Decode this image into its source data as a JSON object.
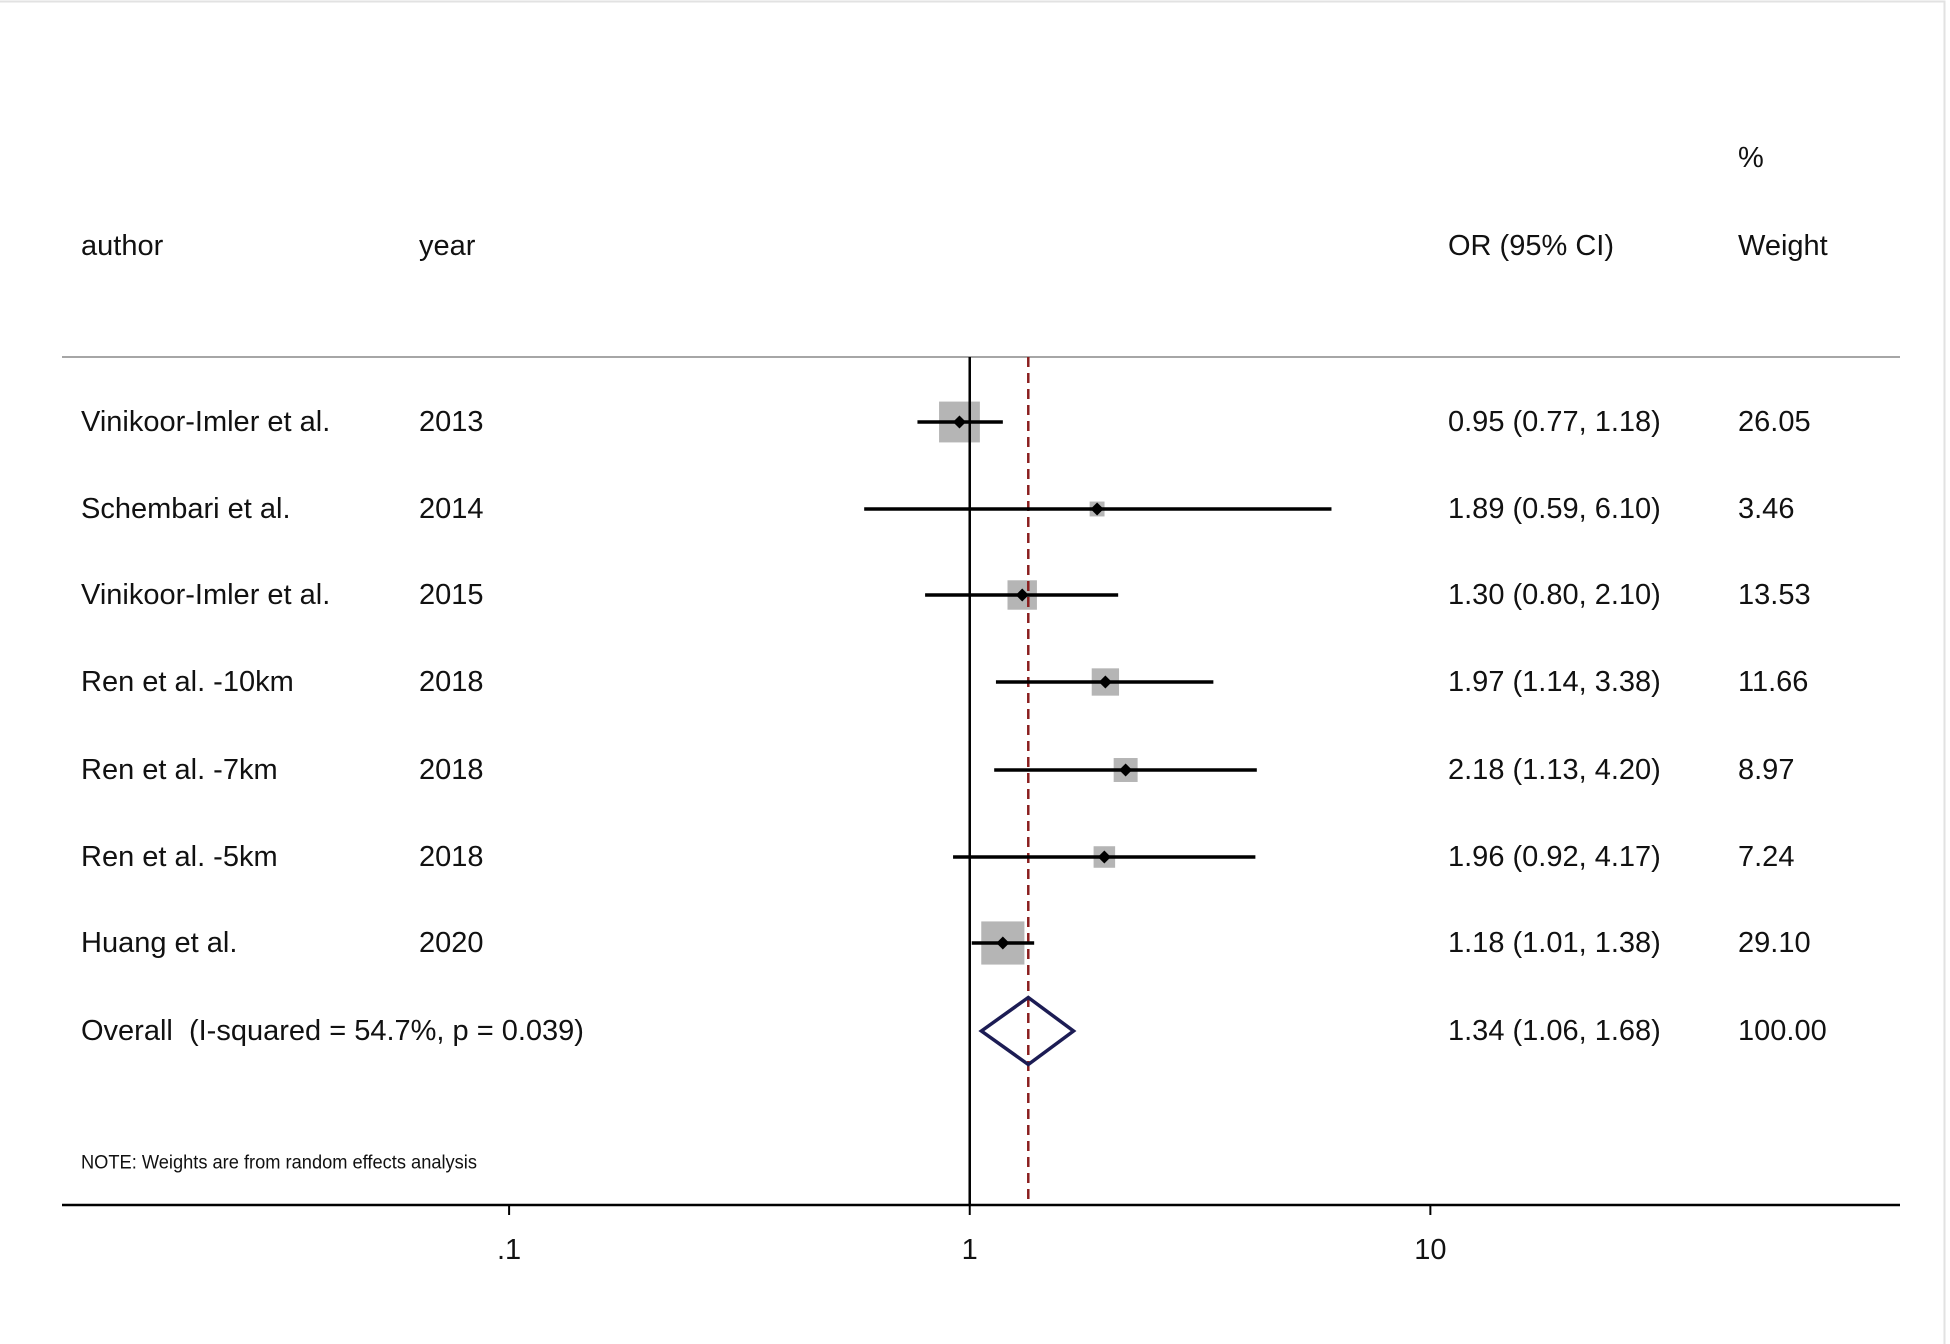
{
  "chart_data": {
    "type": "scatter",
    "header": {
      "author": "author",
      "year": "year",
      "effect": "OR (95% CI)",
      "weight_unit": "%",
      "weight": "Weight"
    },
    "studies": [
      {
        "author": "Vinikoor-Imler et al.",
        "year": "2013",
        "or": 0.95,
        "ci": [
          0.77,
          1.18
        ],
        "or_ci_label": "0.95 (0.77, 1.18)",
        "weight": 26.05,
        "weight_label": "26.05"
      },
      {
        "author": "Schembari et al.",
        "year": "2014",
        "or": 1.89,
        "ci": [
          0.59,
          6.1
        ],
        "or_ci_label": "1.89 (0.59, 6.10)",
        "weight": 3.46,
        "weight_label": "3.46"
      },
      {
        "author": "Vinikoor-Imler et al.",
        "year": "2015",
        "or": 1.3,
        "ci": [
          0.8,
          2.1
        ],
        "or_ci_label": "1.30 (0.80, 2.10)",
        "weight": 13.53,
        "weight_label": "13.53"
      },
      {
        "author": "Ren et al. -10km",
        "year": "2018",
        "or": 1.97,
        "ci": [
          1.14,
          3.38
        ],
        "or_ci_label": "1.97 (1.14, 3.38)",
        "weight": 11.66,
        "weight_label": "11.66"
      },
      {
        "author": "Ren et al. -7km",
        "year": "2018",
        "or": 2.18,
        "ci": [
          1.13,
          4.2
        ],
        "or_ci_label": "2.18 (1.13, 4.20)",
        "weight": 8.97,
        "weight_label": "8.97"
      },
      {
        "author": "Ren et al. -5km",
        "year": "2018",
        "or": 1.96,
        "ci": [
          0.92,
          4.17
        ],
        "or_ci_label": "1.96 (0.92, 4.17)",
        "weight": 7.24,
        "weight_label": "7.24"
      },
      {
        "author": "Huang et al.",
        "year": "2020",
        "or": 1.18,
        "ci": [
          1.01,
          1.38
        ],
        "or_ci_label": "1.18 (1.01, 1.38)",
        "weight": 29.1,
        "weight_label": "29.10"
      }
    ],
    "overall": {
      "label": "Overall  (I-squared = 54.7%, p = 0.039)",
      "or": 1.34,
      "ci": [
        1.06,
        1.68
      ],
      "or_ci_label": "1.34 (1.06, 1.68)",
      "weight": 100.0,
      "weight_label": "100.00"
    },
    "note": "NOTE: Weights are from random effects analysis",
    "null_line": 1,
    "x_axis": {
      "scale": "log",
      "xlim": [
        0.0107,
        104.6
      ],
      "ticks": [
        0.1,
        1,
        10
      ],
      "tick_labels": [
        ".1",
        "1",
        "10"
      ]
    },
    "grid": false,
    "colors": {
      "box": "#b5b5b5",
      "ci": "#000000",
      "point": "#000000",
      "diamond": "#1c1c54",
      "null_line": "#000000",
      "overall_line": "#8b1f1f",
      "separator": "#a6a6a6"
    }
  }
}
